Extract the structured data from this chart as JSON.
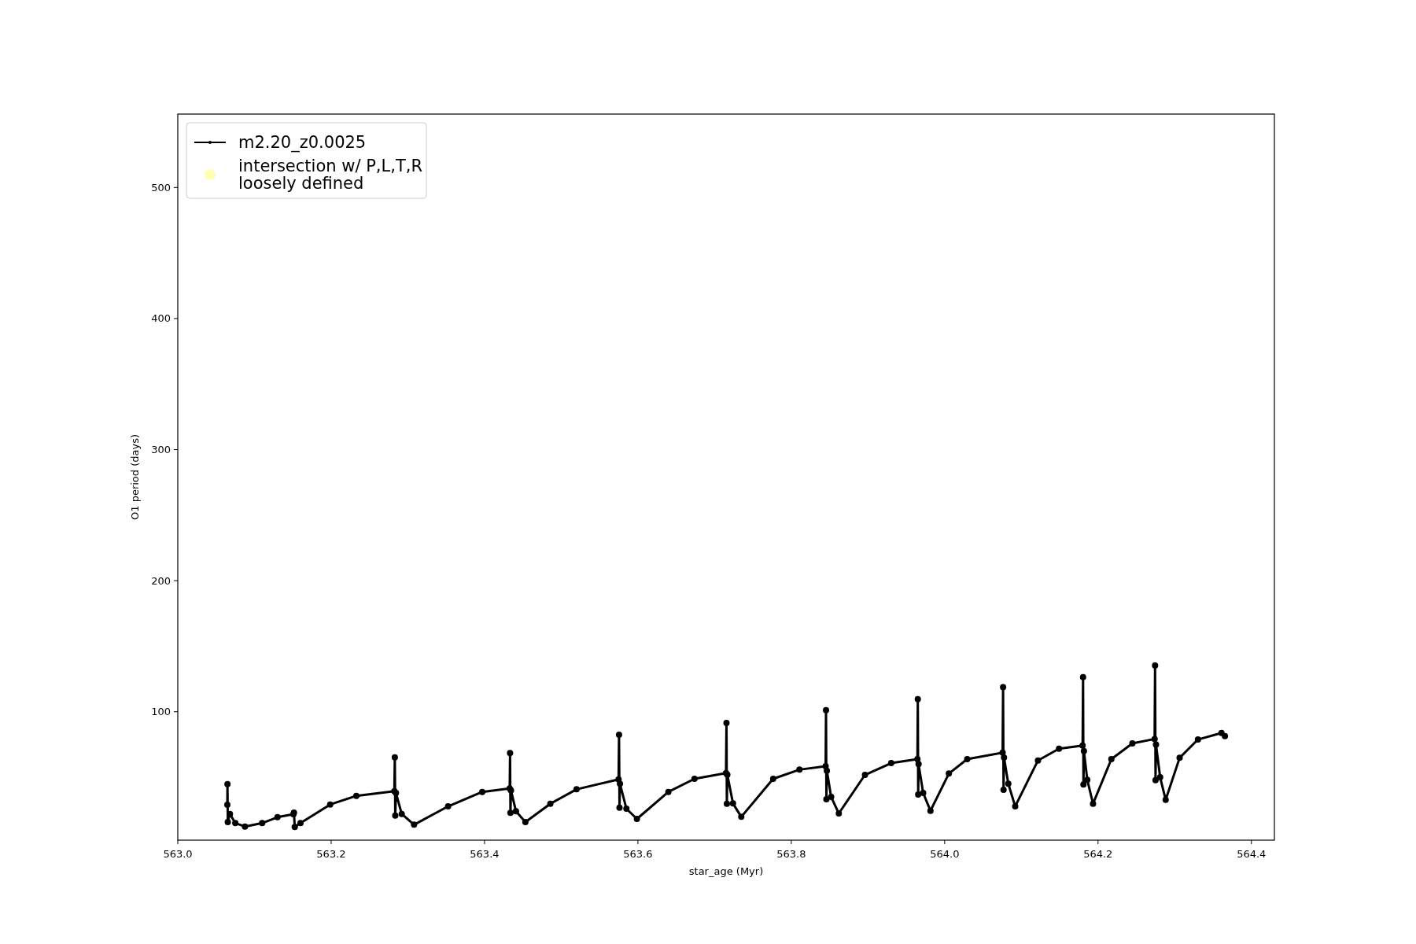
{
  "chart_data": {
    "type": "line",
    "xlabel": "star_age (Myr)",
    "ylabel": "O1 period (days)",
    "xlim": [
      563.0,
      564.43
    ],
    "ylim": [
      2,
      556
    ],
    "xticks": [
      {
        "value": 563.0,
        "label": "563.0"
      },
      {
        "value": 563.2,
        "label": "563.2"
      },
      {
        "value": 563.4,
        "label": "563.4"
      },
      {
        "value": 563.6,
        "label": "563.6"
      },
      {
        "value": 563.8,
        "label": "563.8"
      },
      {
        "value": 564.0,
        "label": "564.0"
      },
      {
        "value": 564.2,
        "label": "564.2"
      },
      {
        "value": 564.4,
        "label": "564.4"
      }
    ],
    "yticks": [
      100,
      200,
      300,
      400,
      500
    ],
    "grid": false,
    "legend": "top left",
    "series": [
      {
        "name": "m2.20_z0.0025",
        "color": "#000000",
        "marker": "circle",
        "line_style": "solid",
        "x": [
          563.0646,
          563.0648,
          563.0652,
          563.068,
          563.075,
          563.0876,
          563.11,
          563.13,
          563.1508,
          563.1515,
          563.1525,
          563.16,
          563.1987,
          563.2328,
          563.2824,
          563.283,
          563.2836,
          563.2845,
          563.292,
          563.3081,
          563.3525,
          563.397,
          563.4328,
          563.4333,
          563.4338,
          563.4345,
          563.441,
          563.4533,
          563.4858,
          563.52,
          563.5748,
          563.5754,
          563.576,
          563.5766,
          563.585,
          563.5987,
          563.6397,
          563.6738,
          563.7149,
          563.7155,
          563.716,
          563.7166,
          563.724,
          563.7348,
          563.7764,
          563.8107,
          563.8448,
          563.8453,
          563.8458,
          563.8464,
          563.852,
          563.862,
          563.8961,
          563.9303,
          563.9645,
          563.965,
          563.9655,
          563.966,
          563.972,
          563.9815,
          564.0055,
          564.0294,
          564.0756,
          564.0762,
          564.0768,
          564.0774,
          564.083,
          564.092,
          564.1217,
          564.1491,
          564.1799,
          564.1805,
          564.181,
          564.1816,
          564.186,
          564.1935,
          564.2174,
          564.2448,
          564.2738,
          564.2744,
          564.275,
          564.2756,
          564.281,
          564.2882,
          564.3064,
          564.3303,
          564.361,
          564.3655
        ],
        "values": [
          29,
          44.8,
          15.8,
          22,
          15,
          12.4,
          15,
          19.5,
          21.8,
          23,
          12,
          15,
          29.2,
          35.8,
          39.4,
          65.2,
          20.8,
          38,
          22,
          13.8,
          27.8,
          38.8,
          41.4,
          68.4,
          22.8,
          40,
          24,
          15.8,
          29.8,
          40.8,
          48.4,
          82.4,
          26.8,
          45,
          26,
          18.2,
          38.8,
          48.8,
          53.2,
          91.4,
          29.8,
          52,
          30,
          19.8,
          48.8,
          55.8,
          58.4,
          101.2,
          33.2,
          55,
          35,
          22.4,
          51.8,
          60.8,
          63.8,
          109.6,
          36.8,
          60,
          38,
          24.4,
          52.8,
          63.8,
          68.8,
          118.8,
          40.4,
          65,
          45,
          27.8,
          62.8,
          71.8,
          74.2,
          126.4,
          44.4,
          70,
          48,
          29.8,
          63.8,
          75.8,
          79.2,
          135.2,
          47.8,
          75,
          50,
          32.8,
          64.8,
          78.8,
          83.8,
          81.4
        ]
      },
      {
        "name": "intersection w/ P,L,T,R\nloosely defined",
        "color": "#ffffb2",
        "type": "scatter",
        "marker": "circle"
      }
    ]
  }
}
